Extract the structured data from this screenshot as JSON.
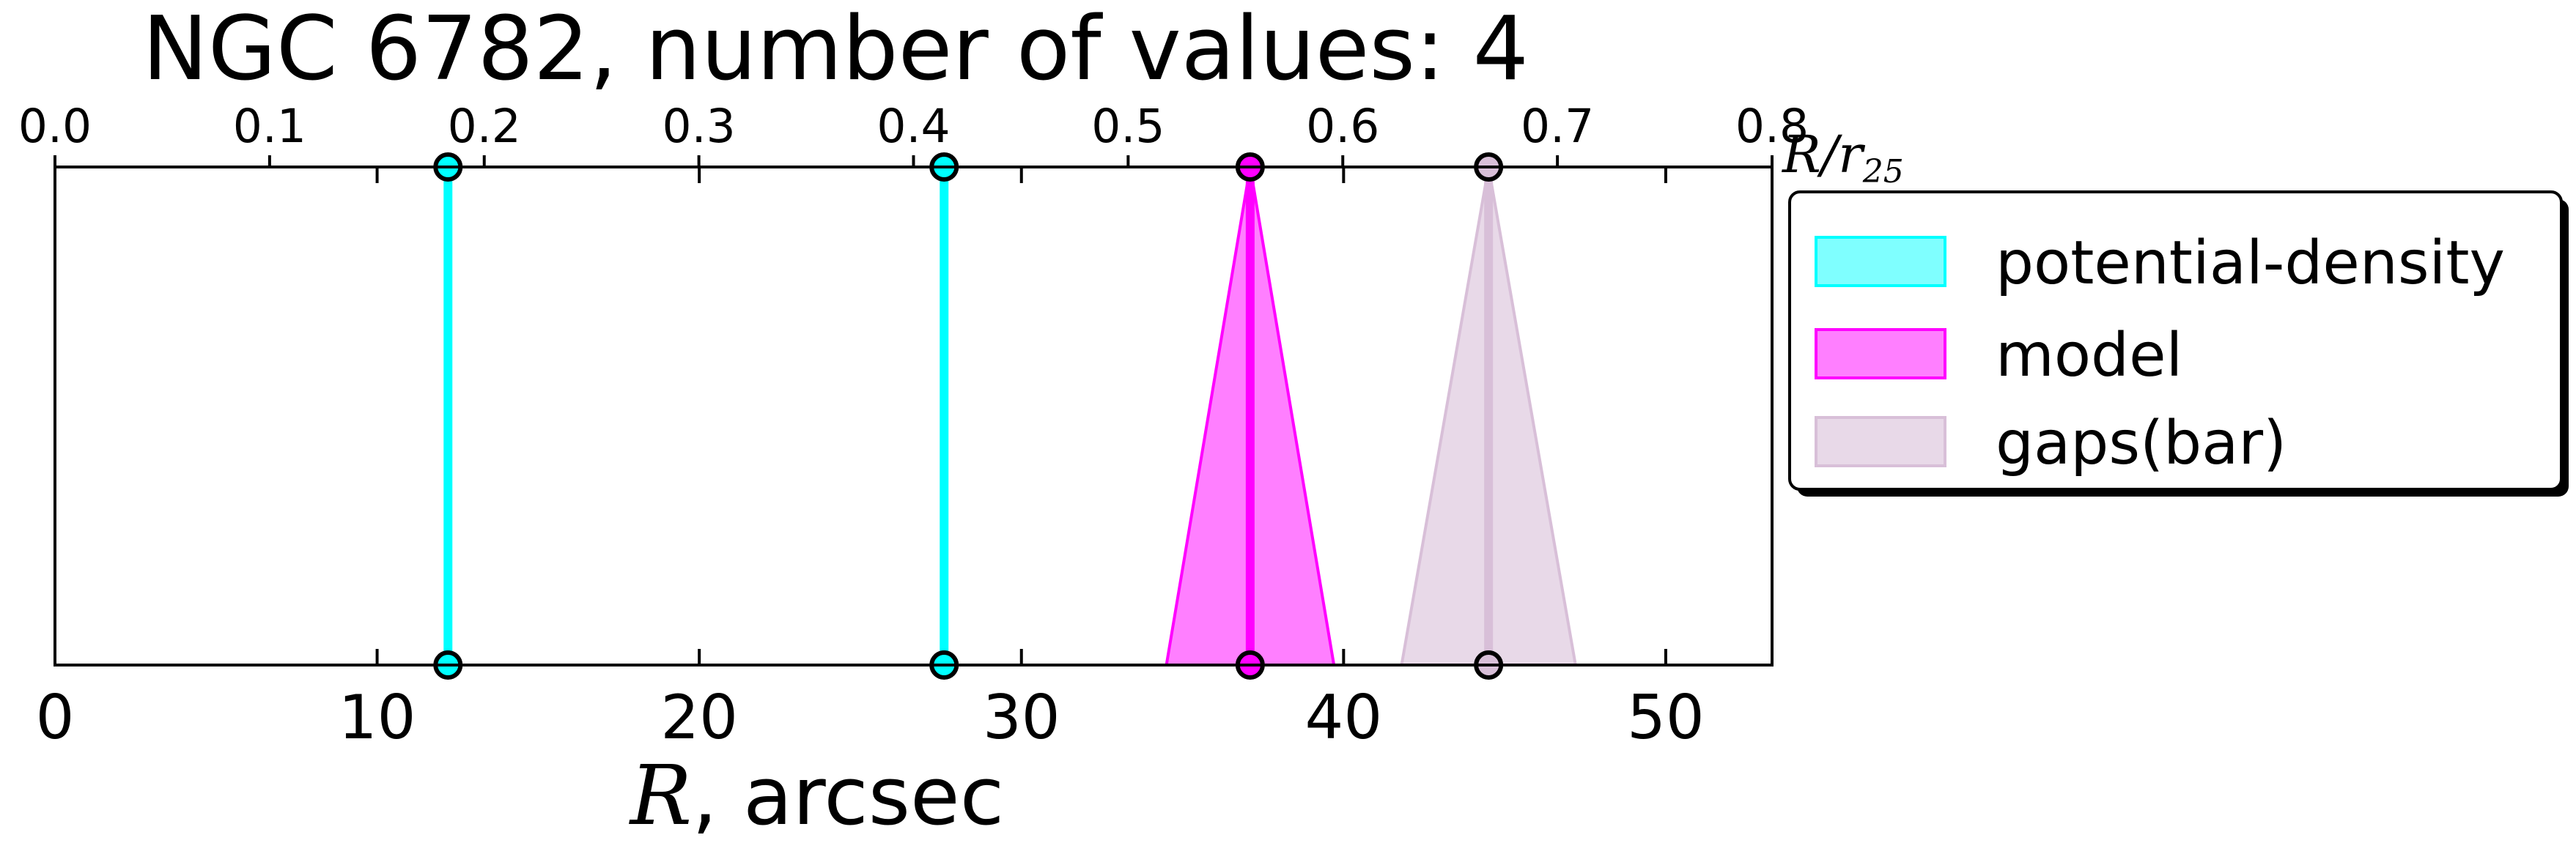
{
  "chart_data": {
    "type": "line",
    "title": "NGC 6782, number of values: 4",
    "xlabel": {
      "symbol": "R",
      "rest": ", arcsec"
    },
    "top_xlabel": {
      "base": "R/r",
      "sub": "25"
    },
    "xlim": [
      0,
      53.3
    ],
    "x_ticks": [
      0,
      10,
      20,
      30,
      40,
      50
    ],
    "x_tick_labels": [
      "0",
      "10",
      "20",
      "30",
      "40",
      "50"
    ],
    "top_xlim": [
      0,
      0.8
    ],
    "top_ticks": [
      0.0,
      0.1,
      0.2,
      0.3,
      0.4,
      0.5,
      0.6,
      0.7,
      0.8
    ],
    "top_tick_labels": [
      "0.0",
      "0.1",
      "0.2",
      "0.3",
      "0.4",
      "0.5",
      "0.6",
      "0.7",
      "0.8"
    ],
    "grid": false,
    "legend_position": "outside-right",
    "series": [
      {
        "name": "potential-density",
        "color": "#00ffff",
        "fill_opacity": 0.5,
        "points": [
          {
            "x": 12.2,
            "err": 0
          },
          {
            "x": 27.6,
            "err": 0
          }
        ]
      },
      {
        "name": "model",
        "color": "#ff00ff",
        "fill_opacity": 0.5,
        "points": [
          {
            "x": 37.1,
            "err": 2.6
          }
        ]
      },
      {
        "name": "gaps(bar)",
        "color": "#d8bfd8",
        "fill_opacity": 0.6,
        "points": [
          {
            "x": 44.5,
            "err": 2.7
          }
        ]
      }
    ]
  }
}
